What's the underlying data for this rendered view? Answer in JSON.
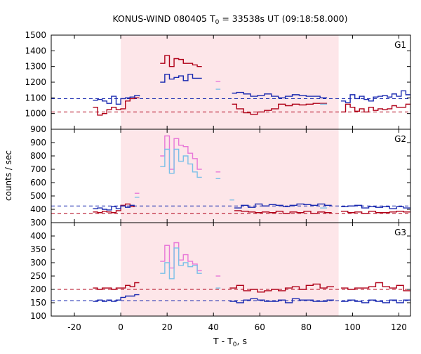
{
  "chart_data": {
    "type": "line",
    "title_main": "KONUS-WIND 080405 T",
    "title_sub": "0",
    "title_rest": " = 33538s UT (09:18:58.000)",
    "xlabel_main": "T - T",
    "xlabel_sub": "0",
    "xlabel_rest": ", s",
    "ylabel": "counts / sec",
    "xlim": [
      -30,
      125
    ],
    "xticks": [
      -20,
      0,
      20,
      40,
      60,
      80,
      100,
      120
    ],
    "shaded_interval": [
      0,
      94
    ],
    "colors": {
      "dark_red": "#b00018",
      "dark_blue": "#1a2ab0",
      "pink": "#e878d8",
      "light_blue": "#7cc0e8",
      "shade": "#fde6e9",
      "bg_dashed_red": "#b00018",
      "bg_dashed_blue": "#1a2ab0"
    },
    "panels": [
      {
        "label": "G1",
        "ylim": [
          900,
          1500
        ],
        "yticks": [
          900,
          1000,
          1100,
          1200,
          1300,
          1400,
          1500
        ],
        "background_levels": [
          1010,
          1095
        ],
        "series": [
          {
            "color": "dark_red",
            "x": [
              -12,
              -10,
              -8,
              -6,
              -4,
              -2,
              0,
              2,
              4,
              6,
              8
            ],
            "y": [
              1040,
              990,
              1000,
              1025,
              1040,
              1025,
              1030,
              1080,
              1095,
              1100,
              1100
            ]
          },
          {
            "color": "dark_blue",
            "x": [
              -12,
              -10,
              -8,
              -6,
              -4,
              -2,
              0,
              2,
              4,
              6,
              8
            ],
            "y": [
              1085,
              1090,
              1080,
              1065,
              1110,
              1060,
              1095,
              1100,
              1105,
              1115,
              1110
            ]
          },
          {
            "color": "dark_red",
            "x": [
              17,
              19,
              21,
              23,
              25,
              27,
              29,
              31,
              33,
              35
            ],
            "y": [
              1320,
              1370,
              1300,
              1350,
              1345,
              1320,
              1320,
              1310,
              1300,
              1300
            ]
          },
          {
            "color": "dark_blue",
            "x": [
              17,
              19,
              21,
              23,
              25,
              27,
              29,
              31,
              33,
              35
            ],
            "y": [
              1200,
              1250,
              1220,
              1230,
              1240,
              1210,
              1250,
              1225,
              1225,
              1225
            ]
          },
          {
            "color": "pink",
            "x": [
              41,
              43
            ],
            "y": [
              1205,
              1205
            ]
          },
          {
            "color": "light_blue",
            "x": [
              41,
              43
            ],
            "y": [
              1155,
              1155
            ]
          },
          {
            "color": "dark_red",
            "x": [
              48,
              50,
              53,
              56,
              59,
              62,
              65,
              68,
              71,
              74,
              77,
              80,
              83,
              86,
              89
            ],
            "y": [
              1060,
              1030,
              1005,
              995,
              1010,
              1020,
              1030,
              1060,
              1050,
              1060,
              1055,
              1060,
              1065,
              1065,
              1065
            ]
          },
          {
            "color": "dark_blue",
            "x": [
              48,
              50,
              53,
              56,
              59,
              62,
              65,
              68,
              71,
              74,
              77,
              80,
              83,
              86,
              89
            ],
            "y": [
              1130,
              1135,
              1125,
              1110,
              1115,
              1125,
              1110,
              1100,
              1110,
              1120,
              1115,
              1110,
              1110,
              1100,
              1100
            ]
          },
          {
            "color": "light_blue",
            "x": [
              86,
              89
            ],
            "y": [
              1060,
              1060
            ]
          },
          {
            "color": "dark_red",
            "x": [
              95,
              97,
              99,
              101,
              103,
              105,
              107,
              109,
              111,
              113,
              115,
              117,
              119,
              121,
              123,
              125
            ],
            "y": [
              1010,
              1060,
              1040,
              1015,
              1030,
              1010,
              1040,
              1020,
              1030,
              1025,
              1030,
              1050,
              1040,
              1040,
              1060,
              1060
            ]
          },
          {
            "color": "dark_blue",
            "x": [
              95,
              97,
              99,
              101,
              103,
              105,
              107,
              109,
              111,
              113,
              115,
              117,
              119,
              121,
              123,
              125
            ],
            "y": [
              1080,
              1070,
              1120,
              1095,
              1110,
              1090,
              1080,
              1105,
              1110,
              1115,
              1105,
              1125,
              1110,
              1145,
              1120,
              1120
            ]
          }
        ]
      },
      {
        "label": "G2",
        "ylim": [
          300,
          1000
        ],
        "yticks": [
          300,
          400,
          500,
          600,
          700,
          800,
          900
        ],
        "background_levels": [
          370,
          425
        ],
        "series": [
          {
            "color": "dark_red",
            "x": [
              -12,
              -10,
              -8,
              -6,
              -4,
              -2,
              0,
              2,
              4,
              6
            ],
            "y": [
              380,
              375,
              385,
              380,
              375,
              390,
              430,
              440,
              420,
              420
            ]
          },
          {
            "color": "dark_blue",
            "x": [
              -12,
              -10,
              -8,
              -6,
              -4,
              -2,
              0,
              2,
              4,
              6
            ],
            "y": [
              405,
              410,
              400,
              395,
              420,
              405,
              425,
              415,
              430,
              430
            ]
          },
          {
            "color": "pink",
            "x": [
              6,
              8
            ],
            "y": [
              520,
              520
            ]
          },
          {
            "color": "light_blue",
            "x": [
              6,
              8
            ],
            "y": [
              490,
              490
            ]
          },
          {
            "color": "pink",
            "x": [
              17,
              19,
              21,
              23,
              25,
              27,
              29,
              31,
              33,
              35
            ],
            "y": [
              800,
              950,
              700,
              930,
              880,
              870,
              820,
              780,
              700,
              700
            ]
          },
          {
            "color": "light_blue",
            "x": [
              17,
              19,
              21,
              23,
              25,
              27,
              29,
              31,
              33,
              35
            ],
            "y": [
              720,
              850,
              670,
              850,
              760,
              800,
              740,
              680,
              640,
              640
            ]
          },
          {
            "color": "pink",
            "x": [
              41,
              43
            ],
            "y": [
              680,
              680
            ]
          },
          {
            "color": "light_blue",
            "x": [
              41,
              43
            ],
            "y": [
              630,
              630
            ]
          },
          {
            "color": "light_blue",
            "x": [
              47,
              49
            ],
            "y": [
              470,
              470
            ]
          },
          {
            "color": "dark_red",
            "x": [
              49,
              52,
              55,
              58,
              61,
              64,
              67,
              70,
              73,
              76,
              79,
              82,
              85,
              88,
              91
            ],
            "y": [
              390,
              385,
              380,
              375,
              380,
              375,
              385,
              370,
              380,
              375,
              385,
              370,
              380,
              375,
              375
            ]
          },
          {
            "color": "dark_blue",
            "x": [
              49,
              52,
              55,
              58,
              61,
              64,
              67,
              70,
              73,
              76,
              79,
              82,
              85,
              88,
              91
            ],
            "y": [
              410,
              430,
              415,
              440,
              425,
              435,
              430,
              420,
              430,
              440,
              435,
              430,
              440,
              430,
              430
            ]
          },
          {
            "color": "light_blue",
            "x": [
              86,
              89
            ],
            "y": [
              410,
              410
            ]
          },
          {
            "color": "dark_red",
            "x": [
              95,
              98,
              101,
              104,
              107,
              110,
              113,
              116,
              119,
              122,
              125
            ],
            "y": [
              385,
              375,
              380,
              370,
              385,
              375,
              375,
              380,
              385,
              380,
              380
            ]
          },
          {
            "color": "dark_blue",
            "x": [
              95,
              98,
              101,
              104,
              107,
              110,
              113,
              116,
              119,
              122,
              125
            ],
            "y": [
              420,
              425,
              430,
              410,
              420,
              415,
              420,
              405,
              420,
              410,
              410
            ]
          }
        ]
      },
      {
        "label": "G3",
        "ylim": [
          100,
          450
        ],
        "yticks": [
          100,
          150,
          200,
          250,
          300,
          350,
          400
        ],
        "background_levels": [
          200,
          158
        ],
        "series": [
          {
            "color": "dark_red",
            "x": [
              -12,
              -10,
              -8,
              -6,
              -4,
              -2,
              0,
              2,
              4,
              6,
              8
            ],
            "y": [
              205,
              200,
              205,
              205,
              200,
              205,
              205,
              215,
              210,
              225,
              225
            ]
          },
          {
            "color": "dark_blue",
            "x": [
              -12,
              -10,
              -8,
              -6,
              -4,
              -2,
              0,
              2,
              4,
              6,
              8
            ],
            "y": [
              155,
              160,
              155,
              160,
              155,
              160,
              170,
              175,
              175,
              180,
              180
            ]
          },
          {
            "color": "pink",
            "x": [
              17,
              19,
              21,
              23,
              25,
              27,
              29,
              31,
              33,
              35
            ],
            "y": [
              305,
              365,
              280,
              375,
              310,
              330,
              305,
              295,
              270,
              270
            ]
          },
          {
            "color": "light_blue",
            "x": [
              17,
              19,
              21,
              23,
              25,
              27,
              29,
              31,
              33,
              35
            ],
            "y": [
              260,
              300,
              240,
              355,
              290,
              300,
              285,
              290,
              260,
              260
            ]
          },
          {
            "color": "pink",
            "x": [
              41,
              43
            ],
            "y": [
              250,
              250
            ]
          },
          {
            "color": "light_blue",
            "x": [
              41,
              43
            ],
            "y": [
              205,
              205
            ]
          },
          {
            "color": "dark_red",
            "x": [
              47,
              50,
              53,
              56,
              59,
              62,
              65,
              68,
              71,
              74,
              77,
              80,
              83,
              86,
              89,
              92
            ],
            "y": [
              205,
              215,
              195,
              200,
              190,
              195,
              200,
              195,
              205,
              210,
              200,
              215,
              220,
              205,
              210,
              210
            ]
          },
          {
            "color": "dark_blue",
            "x": [
              47,
              50,
              53,
              56,
              59,
              62,
              65,
              68,
              71,
              74,
              77,
              80,
              83,
              86,
              89,
              92
            ],
            "y": [
              155,
              150,
              160,
              165,
              160,
              155,
              155,
              160,
              150,
              165,
              160,
              160,
              155,
              155,
              160,
              160
            ]
          },
          {
            "color": "dark_red",
            "x": [
              95,
              98,
              101,
              104,
              107,
              110,
              113,
              116,
              119,
              122,
              125
            ],
            "y": [
              205,
              200,
              205,
              205,
              210,
              225,
              210,
              205,
              215,
              195,
              195
            ]
          },
          {
            "color": "dark_blue",
            "x": [
              95,
              98,
              101,
              104,
              107,
              110,
              113,
              116,
              119,
              122,
              125
            ],
            "y": [
              155,
              160,
              155,
              150,
              160,
              155,
              150,
              160,
              150,
              160,
              160
            ]
          }
        ]
      }
    ]
  }
}
